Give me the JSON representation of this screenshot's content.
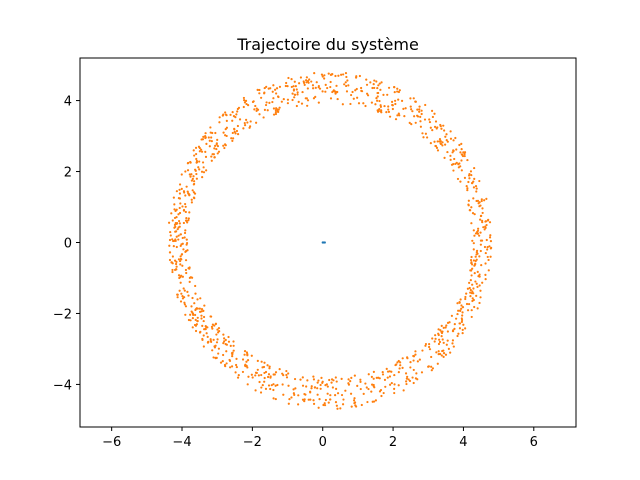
{
  "chart_data": {
    "type": "scatter",
    "title": "Trajectoire du système",
    "xlabel": "",
    "ylabel": "",
    "xlim": [
      -6.9,
      7.2
    ],
    "ylim": [
      -5.2,
      5.2
    ],
    "xticks": [
      -6,
      -4,
      -2,
      0,
      2,
      4,
      6
    ],
    "yticks": [
      4,
      2,
      0,
      -2,
      -4
    ],
    "xtick_labels": [
      "−6",
      "−4",
      "−2",
      "0",
      "2",
      "4",
      "6"
    ],
    "ytick_labels": [
      "4",
      "2",
      "0",
      "−2",
      "−4"
    ],
    "grid": false,
    "series": [
      {
        "color": "#1f77b4",
        "points": [
          [
            0.0,
            0.0
          ],
          [
            0.03,
            0.0
          ],
          [
            0.06,
            0.0
          ]
        ]
      },
      {
        "color": "#ff7f0e",
        "ring": {
          "center": [
            0.2,
            0.05
          ],
          "inner_radius_x": 4.05,
          "outer_radius_x": 4.6,
          "inner_radius_y": 3.85,
          "outer_radius_y": 4.75,
          "point_count": 1200
        }
      }
    ]
  }
}
